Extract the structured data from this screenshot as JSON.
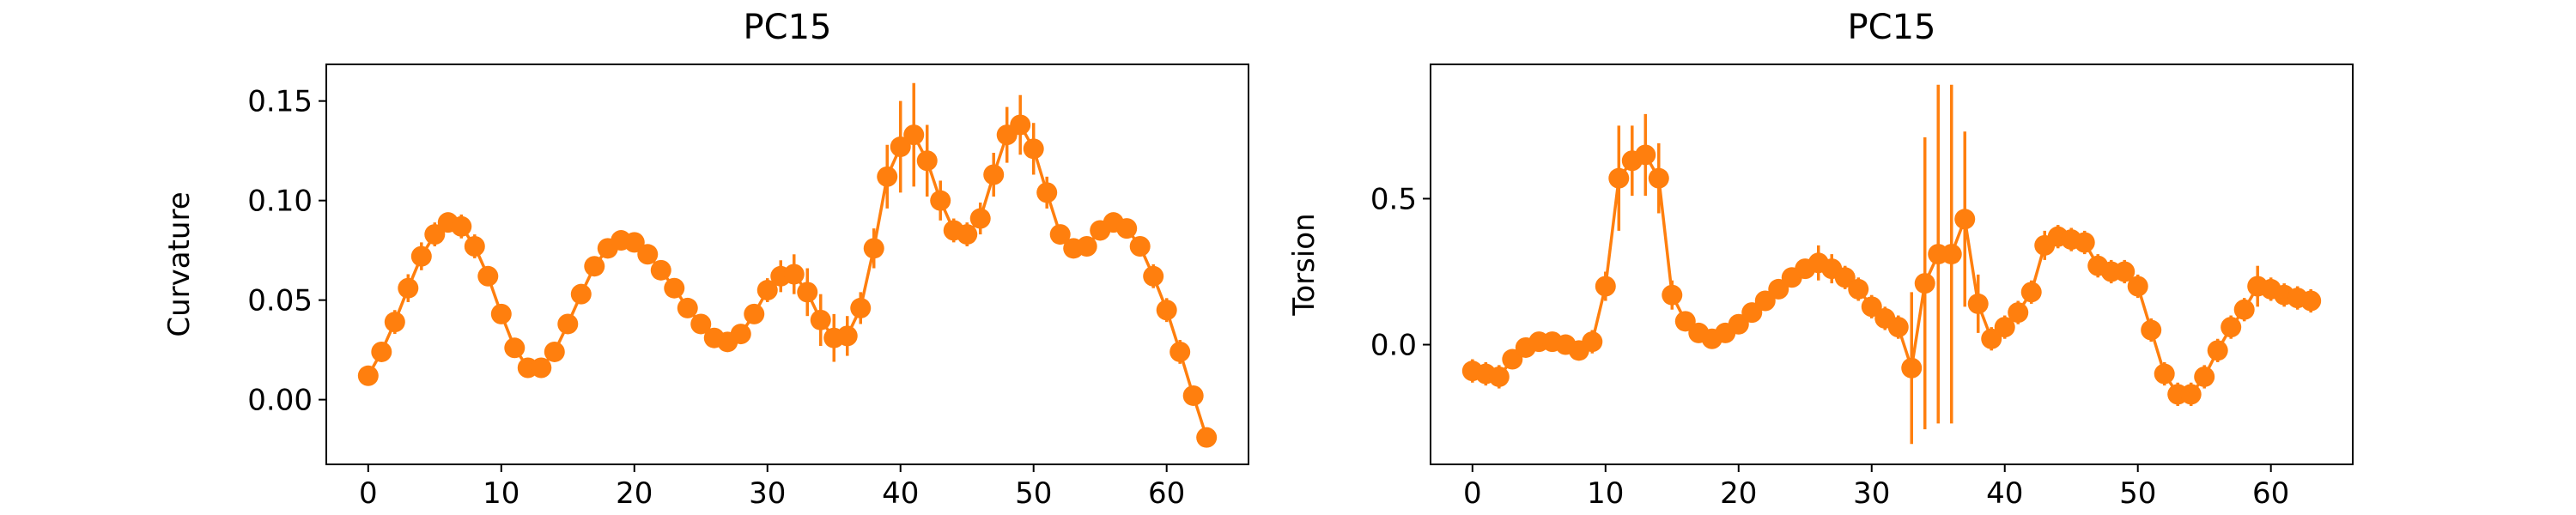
{
  "chart_data": [
    {
      "type": "line",
      "title": "PC15",
      "xlabel": "",
      "ylabel": "Curvature",
      "xlim": [
        -3.15,
        66.15
      ],
      "ylim": [
        -0.0325,
        0.1684
      ],
      "xticks": [
        0,
        10,
        20,
        30,
        40,
        50,
        60
      ],
      "yticks": [
        0.0,
        0.05,
        0.1,
        0.15
      ],
      "ytick_labels": [
        "0.00",
        "0.05",
        "0.10",
        "0.15"
      ],
      "color": "#ff7f0e",
      "grid": false,
      "series": [
        {
          "x": [
            0,
            1,
            2,
            3,
            4,
            5,
            6,
            7,
            8,
            9,
            10,
            11,
            12,
            13,
            14,
            15,
            16,
            17,
            18,
            19,
            20,
            21,
            22,
            23,
            24,
            25,
            26,
            27,
            28,
            29,
            30,
            31,
            32,
            33,
            34,
            35,
            36,
            37,
            38,
            39,
            40,
            41,
            42,
            43,
            44,
            45,
            46,
            47,
            48,
            49,
            50,
            51,
            52,
            53,
            54,
            55,
            56,
            57,
            58,
            59,
            60,
            61,
            62,
            63
          ],
          "values": [
            0.012,
            0.024,
            0.039,
            0.056,
            0.072,
            0.083,
            0.089,
            0.087,
            0.077,
            0.062,
            0.043,
            0.026,
            0.016,
            0.016,
            0.024,
            0.038,
            0.053,
            0.067,
            0.076,
            0.08,
            0.079,
            0.073,
            0.065,
            0.056,
            0.046,
            0.038,
            0.031,
            0.029,
            0.033,
            0.043,
            0.055,
            0.062,
            0.063,
            0.054,
            0.04,
            0.031,
            0.032,
            0.046,
            0.076,
            0.112,
            0.127,
            0.133,
            0.12,
            0.1,
            0.085,
            0.083,
            0.091,
            0.113,
            0.133,
            0.138,
            0.126,
            0.104,
            0.083,
            0.076,
            0.077,
            0.085,
            0.089,
            0.086,
            0.077,
            0.062,
            0.045,
            0.024,
            0.002,
            -0.019
          ],
          "errors": [
            0.003,
            0.004,
            0.006,
            0.007,
            0.007,
            0.006,
            0.005,
            0.006,
            0.006,
            0.005,
            0.004,
            0.003,
            0.003,
            0.003,
            0.003,
            0.004,
            0.004,
            0.004,
            0.004,
            0.004,
            0.004,
            0.004,
            0.004,
            0.004,
            0.004,
            0.003,
            0.003,
            0.004,
            0.004,
            0.004,
            0.006,
            0.008,
            0.01,
            0.012,
            0.013,
            0.012,
            0.01,
            0.008,
            0.01,
            0.016,
            0.023,
            0.026,
            0.018,
            0.01,
            0.006,
            0.006,
            0.008,
            0.011,
            0.014,
            0.015,
            0.013,
            0.008,
            0.005,
            0.004,
            0.004,
            0.005,
            0.005,
            0.005,
            0.005,
            0.006,
            0.006,
            0.006,
            0.004,
            0.003
          ]
        }
      ]
    },
    {
      "type": "line",
      "title": "PC15",
      "xlabel": "",
      "ylabel": "Torsion",
      "xlim": [
        -3.15,
        66.15
      ],
      "ylim": [
        -0.41,
        0.96
      ],
      "xticks": [
        0,
        10,
        20,
        30,
        40,
        50,
        60
      ],
      "yticks": [
        0.0,
        0.5
      ],
      "ytick_labels": [
        "0.0",
        "0.5"
      ],
      "color": "#ff7f0e",
      "grid": false,
      "series": [
        {
          "x": [
            0,
            1,
            2,
            3,
            4,
            5,
            6,
            7,
            8,
            9,
            10,
            11,
            12,
            13,
            14,
            15,
            16,
            17,
            18,
            19,
            20,
            21,
            22,
            23,
            24,
            25,
            26,
            27,
            28,
            29,
            30,
            31,
            32,
            33,
            34,
            35,
            36,
            37,
            38,
            39,
            40,
            41,
            42,
            43,
            44,
            45,
            46,
            47,
            48,
            49,
            50,
            51,
            52,
            53,
            54,
            55,
            56,
            57,
            58,
            59,
            60,
            61,
            62,
            63
          ],
          "values": [
            -0.09,
            -0.1,
            -0.11,
            -0.05,
            -0.01,
            0.01,
            0.01,
            0.0,
            -0.02,
            0.01,
            0.2,
            0.57,
            0.63,
            0.65,
            0.57,
            0.17,
            0.08,
            0.04,
            0.02,
            0.04,
            0.07,
            0.11,
            0.15,
            0.19,
            0.23,
            0.26,
            0.28,
            0.26,
            0.23,
            0.19,
            0.13,
            0.09,
            0.06,
            -0.08,
            0.21,
            0.31,
            0.31,
            0.43,
            0.14,
            0.02,
            0.06,
            0.11,
            0.18,
            0.34,
            0.37,
            0.36,
            0.35,
            0.27,
            0.25,
            0.25,
            0.2,
            0.05,
            -0.1,
            -0.17,
            -0.17,
            -0.11,
            -0.02,
            0.06,
            0.12,
            0.2,
            0.19,
            0.17,
            0.16,
            0.15
          ],
          "errors": [
            0.04,
            0.04,
            0.04,
            0.03,
            0.03,
            0.02,
            0.02,
            0.02,
            0.02,
            0.04,
            0.05,
            0.18,
            0.12,
            0.14,
            0.12,
            0.05,
            0.03,
            0.03,
            0.03,
            0.03,
            0.03,
            0.03,
            0.03,
            0.03,
            0.03,
            0.03,
            0.06,
            0.05,
            0.04,
            0.04,
            0.04,
            0.04,
            0.04,
            0.26,
            0.5,
            0.58,
            0.58,
            0.3,
            0.1,
            0.04,
            0.04,
            0.04,
            0.04,
            0.05,
            0.04,
            0.04,
            0.04,
            0.04,
            0.04,
            0.04,
            0.04,
            0.04,
            0.04,
            0.04,
            0.04,
            0.04,
            0.04,
            0.04,
            0.04,
            0.07,
            0.04,
            0.04,
            0.04,
            0.04
          ]
        }
      ]
    }
  ]
}
